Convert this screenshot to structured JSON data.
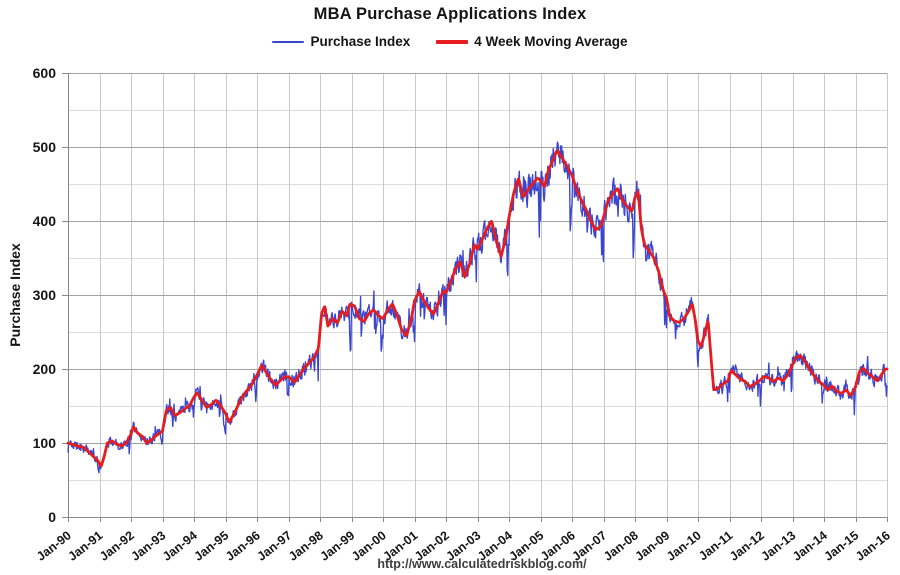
{
  "header": {
    "title": "MBA Purchase Applications Index"
  },
  "legend": {
    "items": [
      {
        "label": "Purchase Index",
        "color": "#3a46cf",
        "thickness": 2
      },
      {
        "label": "4 Week Moving Average",
        "color": "#e51d1f",
        "thickness": 4
      }
    ]
  },
  "footer": {
    "url": "http://www.calculatedriskblog.com/"
  },
  "chart_data": {
    "type": "line",
    "title": "MBA Purchase Applications Index",
    "xlabel": "",
    "ylabel": "Purchase Index",
    "ylim": [
      0,
      600
    ],
    "yticks": [
      0,
      100,
      200,
      300,
      400,
      500,
      600
    ],
    "yticks_minor": [
      50,
      150,
      250,
      350,
      450,
      550
    ],
    "x_range_years": [
      1990,
      2016
    ],
    "xtick_labels": [
      "Jan-90",
      "Jan-91",
      "Jan-92",
      "Jan-93",
      "Jan-94",
      "Jan-95",
      "Jan-96",
      "Jan-97",
      "Jan-98",
      "Jan-99",
      "Jan-00",
      "Jan-01",
      "Jan-02",
      "Jan-03",
      "Jan-04",
      "Jan-05",
      "Jan-06",
      "Jan-07",
      "Jan-08",
      "Jan-09",
      "Jan-10",
      "Jan-11",
      "Jan-12",
      "Jan-13",
      "Jan-14",
      "Jan-15",
      "Jan-16"
    ],
    "grid": {
      "major_color": "#a2a2a2",
      "minor_color": "#dcdcdc",
      "vertical_color": "#c8c8c8",
      "axis_color": "#8a8a8a"
    },
    "legend_position": "top",
    "series": [
      {
        "name": "Purchase Index",
        "color": "#3a46cf",
        "width": 1.35,
        "derived_from": "4 Week Moving Average plus weekly noise"
      },
      {
        "name": "4 Week Moving Average",
        "color": "#e51d1f",
        "width": 2.8,
        "points": [
          [
            1990.0,
            100
          ],
          [
            1990.15,
            98
          ],
          [
            1990.3,
            96
          ],
          [
            1990.5,
            94
          ],
          [
            1990.65,
            88
          ],
          [
            1990.8,
            82
          ],
          [
            1990.95,
            76
          ],
          [
            1991.05,
            68
          ],
          [
            1991.15,
            82
          ],
          [
            1991.25,
            100
          ],
          [
            1991.4,
            103
          ],
          [
            1991.55,
            98
          ],
          [
            1991.7,
            96
          ],
          [
            1991.85,
            100
          ],
          [
            1992.0,
            112
          ],
          [
            1992.08,
            122
          ],
          [
            1992.2,
            114
          ],
          [
            1992.35,
            109
          ],
          [
            1992.5,
            100
          ],
          [
            1992.65,
            104
          ],
          [
            1992.8,
            110
          ],
          [
            1993.0,
            116
          ],
          [
            1993.12,
            144
          ],
          [
            1993.25,
            148
          ],
          [
            1993.4,
            137
          ],
          [
            1993.55,
            141
          ],
          [
            1993.7,
            146
          ],
          [
            1993.85,
            150
          ],
          [
            1994.0,
            162
          ],
          [
            1994.1,
            168
          ],
          [
            1994.25,
            158
          ],
          [
            1994.4,
            148
          ],
          [
            1994.55,
            152
          ],
          [
            1994.7,
            158
          ],
          [
            1994.85,
            150
          ],
          [
            1995.0,
            140
          ],
          [
            1995.12,
            128
          ],
          [
            1995.3,
            142
          ],
          [
            1995.5,
            160
          ],
          [
            1995.7,
            172
          ],
          [
            1995.85,
            180
          ],
          [
            1996.0,
            192
          ],
          [
            1996.15,
            205
          ],
          [
            1996.3,
            195
          ],
          [
            1996.45,
            185
          ],
          [
            1996.6,
            178
          ],
          [
            1996.75,
            185
          ],
          [
            1996.9,
            190
          ],
          [
            1997.05,
            188
          ],
          [
            1997.2,
            182
          ],
          [
            1997.35,
            192
          ],
          [
            1997.5,
            202
          ],
          [
            1997.65,
            208
          ],
          [
            1997.8,
            215
          ],
          [
            1997.95,
            228
          ],
          [
            1998.05,
            275
          ],
          [
            1998.15,
            285
          ],
          [
            1998.25,
            258
          ],
          [
            1998.4,
            268
          ],
          [
            1998.55,
            262
          ],
          [
            1998.7,
            278
          ],
          [
            1998.85,
            272
          ],
          [
            1998.95,
            288
          ],
          [
            1999.1,
            285
          ],
          [
            1999.25,
            268
          ],
          [
            1999.4,
            264
          ],
          [
            1999.55,
            275
          ],
          [
            1999.7,
            280
          ],
          [
            1999.85,
            272
          ],
          [
            2000.0,
            268
          ],
          [
            2000.15,
            280
          ],
          [
            2000.3,
            288
          ],
          [
            2000.45,
            272
          ],
          [
            2000.6,
            252
          ],
          [
            2000.75,
            245
          ],
          [
            2000.9,
            268
          ],
          [
            2001.0,
            292
          ],
          [
            2001.15,
            305
          ],
          [
            2001.3,
            292
          ],
          [
            2001.45,
            282
          ],
          [
            2001.6,
            274
          ],
          [
            2001.75,
            288
          ],
          [
            2001.9,
            305
          ],
          [
            2002.0,
            303
          ],
          [
            2002.15,
            318
          ],
          [
            2002.3,
            335
          ],
          [
            2002.45,
            345
          ],
          [
            2002.6,
            324
          ],
          [
            2002.75,
            342
          ],
          [
            2002.9,
            368
          ],
          [
            2003.0,
            362
          ],
          [
            2003.15,
            375
          ],
          [
            2003.3,
            390
          ],
          [
            2003.45,
            400
          ],
          [
            2003.6,
            372
          ],
          [
            2003.75,
            352
          ],
          [
            2003.9,
            378
          ],
          [
            2004.0,
            405
          ],
          [
            2004.15,
            438
          ],
          [
            2004.3,
            458
          ],
          [
            2004.45,
            432
          ],
          [
            2004.6,
            442
          ],
          [
            2004.75,
            450
          ],
          [
            2004.9,
            458
          ],
          [
            2005.0,
            455
          ],
          [
            2005.12,
            446
          ],
          [
            2005.25,
            468
          ],
          [
            2005.4,
            483
          ],
          [
            2005.52,
            495
          ],
          [
            2005.65,
            488
          ],
          [
            2005.8,
            477
          ],
          [
            2005.92,
            468
          ],
          [
            2006.0,
            462
          ],
          [
            2006.15,
            442
          ],
          [
            2006.3,
            428
          ],
          [
            2006.45,
            415
          ],
          [
            2006.6,
            400
          ],
          [
            2006.75,
            388
          ],
          [
            2006.9,
            392
          ],
          [
            2007.0,
            405
          ],
          [
            2007.15,
            428
          ],
          [
            2007.3,
            437
          ],
          [
            2007.45,
            444
          ],
          [
            2007.6,
            428
          ],
          [
            2007.75,
            420
          ],
          [
            2007.9,
            413
          ],
          [
            2008.0,
            432
          ],
          [
            2008.1,
            440
          ],
          [
            2008.2,
            390
          ],
          [
            2008.3,
            368
          ],
          [
            2008.45,
            360
          ],
          [
            2008.6,
            350
          ],
          [
            2008.75,
            332
          ],
          [
            2008.9,
            306
          ],
          [
            2009.0,
            296
          ],
          [
            2009.1,
            271
          ],
          [
            2009.25,
            265
          ],
          [
            2009.4,
            263
          ],
          [
            2009.55,
            268
          ],
          [
            2009.7,
            278
          ],
          [
            2009.82,
            288
          ],
          [
            2009.93,
            262
          ],
          [
            2010.0,
            238
          ],
          [
            2010.1,
            230
          ],
          [
            2010.2,
            246
          ],
          [
            2010.32,
            266
          ],
          [
            2010.42,
            212
          ],
          [
            2010.5,
            172
          ],
          [
            2010.65,
            174
          ],
          [
            2010.8,
            180
          ],
          [
            2010.95,
            184
          ],
          [
            2011.05,
            198
          ],
          [
            2011.2,
            192
          ],
          [
            2011.35,
            186
          ],
          [
            2011.5,
            183
          ],
          [
            2011.65,
            176
          ],
          [
            2011.8,
            180
          ],
          [
            2011.95,
            184
          ],
          [
            2012.1,
            190
          ],
          [
            2012.25,
            188
          ],
          [
            2012.4,
            183
          ],
          [
            2012.55,
            188
          ],
          [
            2012.7,
            184
          ],
          [
            2012.85,
            192
          ],
          [
            2013.0,
            206
          ],
          [
            2013.12,
            216
          ],
          [
            2013.25,
            218
          ],
          [
            2013.4,
            210
          ],
          [
            2013.55,
            199
          ],
          [
            2013.7,
            190
          ],
          [
            2013.85,
            183
          ],
          [
            2014.0,
            178
          ],
          [
            2014.12,
            172
          ],
          [
            2014.25,
            177
          ],
          [
            2014.4,
            170
          ],
          [
            2014.55,
            167
          ],
          [
            2014.7,
            172
          ],
          [
            2014.85,
            164
          ],
          [
            2015.0,
            176
          ],
          [
            2015.12,
            196
          ],
          [
            2015.25,
            201
          ],
          [
            2015.4,
            194
          ],
          [
            2015.55,
            189
          ],
          [
            2015.7,
            184
          ],
          [
            2015.82,
            192
          ],
          [
            2015.95,
            200
          ],
          [
            2016.0,
            200
          ]
        ]
      }
    ],
    "noise": {
      "seed": 11,
      "base": 2.5,
      "rel": 0.035,
      "spike_prob": 0.07,
      "spike_mult": 2.6,
      "autocorr": 0.25,
      "holiday_dip_rel": 0.13,
      "weeks_per_year": 52,
      "min": 50,
      "max": 532
    }
  }
}
